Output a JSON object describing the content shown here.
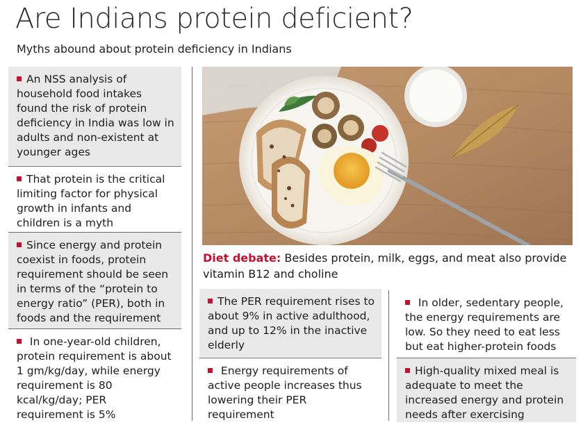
{
  "header": {
    "title": "Are Indians protein deficient?",
    "subtitle": "Myths abound about protein deficiency in Indians"
  },
  "left_column": [
    {
      "text": "An NSS analysis of household food intakes found the risk of protein deficiency in India was low in adults and non-existent at younger ages"
    },
    {
      "text": "That protein is the critical limiting factor for physical growth in infants and children is a myth"
    },
    {
      "text": "Since energy and protein coexist in foods, protein requirement should be seen in terms of the “protein to energy ratio” (PER), both in foods and the requirement"
    },
    {
      "text": " In one-year-old children, protein requirement is about 1 gm/kg/day, while energy requirement is 80 kcal/kg/day; PER requirement is 5%"
    }
  ],
  "photo": {
    "colors": {
      "table": "#b58a63",
      "plate": "#f7f5f0",
      "milk": "#fbfbf8",
      "egg_yolk": "#f2b93b"
    }
  },
  "caption": {
    "lead": "Diet debate:",
    "text": " Besides protein, milk, eggs, and meat also provide vitamin B12 and choline"
  },
  "middle_column": [
    {
      "text": "The PER requirement rises to about 9% in active adulthood, and up to 12% in the inactive elderly"
    },
    {
      "text": " Energy requirements of active people increases thus lowering their PER requirement"
    }
  ],
  "right_column": [
    {
      "text": " In older, sedentary people, the energy requirements are low. So they need to eat less but eat higher-protein foods"
    },
    {
      "text": "High-quality mixed meal is adequate to meet the increased energy and protein needs after exercising"
    }
  ],
  "colors": {
    "accent": "#c8102e",
    "box_gray": "#e9e9ea"
  }
}
